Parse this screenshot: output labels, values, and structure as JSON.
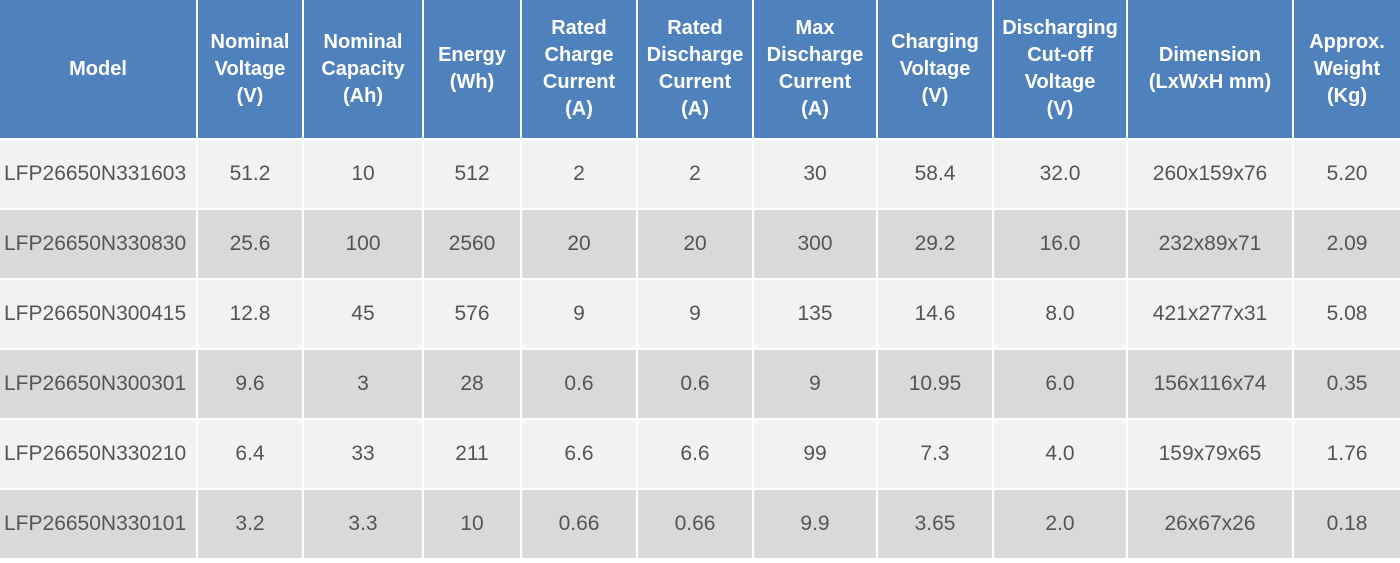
{
  "columns": [
    {
      "lines": [
        "Model"
      ]
    },
    {
      "lines": [
        "Nominal",
        "Voltage",
        "(V)"
      ]
    },
    {
      "lines": [
        "Nominal",
        "Capacity",
        "(Ah)"
      ]
    },
    {
      "lines": [
        "Energy",
        "(Wh)"
      ]
    },
    {
      "lines": [
        "Rated",
        "Charge",
        "Current",
        "(A)"
      ]
    },
    {
      "lines": [
        "Rated",
        "Discharge",
        "Current",
        "(A)"
      ]
    },
    {
      "lines": [
        "Max",
        "Discharge",
        "Current",
        "(A)"
      ]
    },
    {
      "lines": [
        "Charging",
        "Voltage",
        "(V)"
      ]
    },
    {
      "lines": [
        "Discharging",
        "Cut-off",
        "Voltage",
        "(V)"
      ]
    },
    {
      "lines": [
        "Dimension",
        "(LxWxH mm)"
      ]
    },
    {
      "lines": [
        "Approx.",
        "Weight",
        "(Kg)"
      ]
    }
  ],
  "rows": [
    [
      "LFP26650N331603",
      "51.2",
      "10",
      "512",
      "2",
      "2",
      "30",
      "58.4",
      "32.0",
      "260x159x76",
      "5.20"
    ],
    [
      "LFP26650N330830",
      "25.6",
      "100",
      "2560",
      "20",
      "20",
      "300",
      "29.2",
      "16.0",
      "232x89x71",
      "2.09"
    ],
    [
      "LFP26650N300415",
      "12.8",
      "45",
      "576",
      "9",
      "9",
      "135",
      "14.6",
      "8.0",
      "421x277x31",
      "5.08"
    ],
    [
      "LFP26650N300301",
      "9.6",
      "3",
      "28",
      "0.6",
      "0.6",
      "9",
      "10.95",
      "6.0",
      "156x116x74",
      "0.35"
    ],
    [
      "LFP26650N330210",
      "6.4",
      "33",
      "211",
      "6.6",
      "6.6",
      "99",
      "7.3",
      "4.0",
      "159x79x65",
      "1.76"
    ],
    [
      "LFP26650N330101",
      "3.2",
      "3.3",
      "10",
      "0.66",
      "0.66",
      "9.9",
      "3.65",
      "2.0",
      "26x67x26",
      "0.18"
    ]
  ]
}
